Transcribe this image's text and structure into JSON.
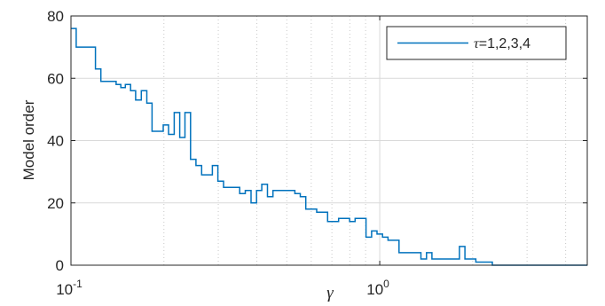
{
  "chart_data": {
    "type": "line",
    "style": "stairs",
    "xlabel": "γ",
    "ylabel": "Model order",
    "x_scale": "log",
    "xlim": [
      0.1,
      4.7
    ],
    "ylim": [
      0,
      80
    ],
    "y_ticks": [
      0,
      20,
      40,
      60,
      80
    ],
    "x_ticks": [
      {
        "value": 0.1,
        "base": "10",
        "exp": "-1"
      },
      {
        "value": 1,
        "base": "10",
        "exp": "0"
      }
    ],
    "grid": true,
    "legend_position": "top-right",
    "colors": {
      "series": "#0072BD",
      "grid": "#d9d9d9",
      "axis": "#262626"
    },
    "series": [
      {
        "name": "τ=1,2,3,4",
        "legend_prefix": "τ",
        "legend_suffix": "=1,2,3,4",
        "x": [
          0.1,
          0.104,
          0.12,
          0.125,
          0.132,
          0.14,
          0.145,
          0.15,
          0.156,
          0.162,
          0.169,
          0.176,
          0.183,
          0.191,
          0.199,
          0.207,
          0.216,
          0.225,
          0.234,
          0.244,
          0.254,
          0.265,
          0.276,
          0.287,
          0.299,
          0.312,
          0.325,
          0.338,
          0.352,
          0.367,
          0.383,
          0.399,
          0.415,
          0.433,
          0.451,
          0.47,
          0.489,
          0.51,
          0.531,
          0.553,
          0.576,
          0.6,
          0.625,
          0.651,
          0.678,
          0.706,
          0.736,
          0.767,
          0.799,
          0.832,
          0.867,
          0.903,
          0.941,
          0.98,
          1.021,
          1.064,
          1.108,
          1.155,
          1.203,
          1.253,
          1.306,
          1.36,
          1.417,
          1.476,
          1.538,
          1.602,
          1.669,
          1.739,
          1.812,
          1.887,
          1.966,
          2.048,
          2.134,
          2.223,
          2.316,
          2.8,
          4.7
        ],
        "y": [
          76,
          70,
          63,
          59,
          59,
          58,
          57,
          58,
          56,
          53,
          56,
          52,
          43,
          43,
          45,
          42,
          49,
          41,
          49,
          34,
          32,
          29,
          29,
          32,
          27,
          25,
          25,
          25,
          23,
          24,
          20,
          24,
          26,
          22,
          24,
          24,
          24,
          24,
          23,
          22,
          18,
          18,
          17,
          17,
          14,
          14,
          15,
          15,
          14,
          15,
          15,
          9,
          11,
          10,
          9,
          8,
          8,
          4,
          4,
          4,
          4,
          2,
          4,
          2,
          2,
          2,
          2,
          2,
          6,
          2,
          2,
          1,
          1,
          1,
          0,
          0,
          0
        ]
      }
    ]
  }
}
